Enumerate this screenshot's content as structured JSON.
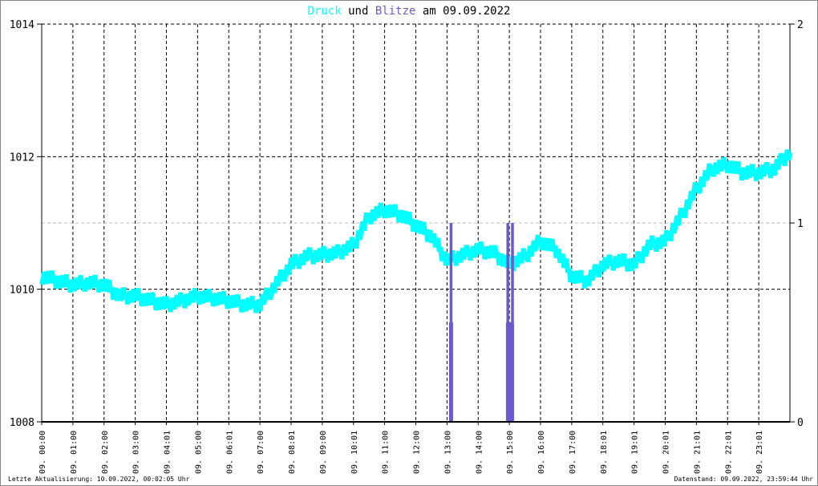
{
  "chart_data": {
    "type": "line",
    "title_parts": [
      {
        "text": "Druck",
        "color": "#00ffff"
      },
      {
        "text": " und ",
        "color": "#000000"
      },
      {
        "text": "Blitze",
        "color": "#6a5acd"
      },
      {
        "text": " am 09.09.2022",
        "color": "#000000"
      }
    ],
    "y_left": {
      "range": [
        1008,
        1014
      ],
      "ticks": [
        "1008",
        "1010",
        "1012",
        "1014"
      ]
    },
    "y_right": {
      "range": [
        0,
        2
      ],
      "ticks": [
        "0",
        "1",
        "2"
      ]
    },
    "x_ticks": [
      "09. 00:00",
      "09. 01:00",
      "09. 02:00",
      "09. 03:00",
      "09. 04:01",
      "09. 05:00",
      "09. 06:01",
      "09. 07:00",
      "09. 08:01",
      "09. 09:00",
      "09. 10:01",
      "09. 11:00",
      "09. 12:00",
      "09. 13:00",
      "09. 14:00",
      "09. 15:00",
      "09. 16:00",
      "09. 17:00",
      "09. 18:01",
      "09. 19:01",
      "09. 20:01",
      "09. 21:01",
      "09. 22:01",
      "09. 23:01"
    ],
    "grid": true,
    "series": [
      {
        "name": "Druck",
        "axis": "left",
        "color": "#00ffff",
        "x_hours": [
          0,
          0.5,
          1,
          1.5,
          2,
          2.5,
          3,
          3.5,
          4,
          4.5,
          5,
          5.5,
          6,
          6.5,
          7,
          7.5,
          8,
          8.5,
          9,
          9.5,
          10,
          10.5,
          11,
          11.5,
          12,
          12.5,
          13,
          13.5,
          14,
          14.5,
          15,
          15.5,
          16,
          16.5,
          17,
          17.5,
          18,
          18.5,
          19,
          19.5,
          20,
          20.5,
          21,
          21.5,
          22,
          22.5,
          23,
          23.5,
          24
        ],
        "values": [
          1010.2,
          1010.13,
          1010.07,
          1010.1,
          1010.07,
          1009.9,
          1009.9,
          1009.83,
          1009.77,
          1009.83,
          1009.9,
          1009.87,
          1009.83,
          1009.77,
          1009.77,
          1010.07,
          1010.37,
          1010.5,
          1010.52,
          1010.55,
          1010.67,
          1011.1,
          1011.2,
          1011.13,
          1010.97,
          1010.8,
          1010.43,
          1010.52,
          1010.6,
          1010.55,
          1010.37,
          1010.5,
          1010.73,
          1010.6,
          1010.2,
          1010.13,
          1010.37,
          1010.43,
          1010.37,
          1010.67,
          1010.73,
          1011.1,
          1011.52,
          1011.82,
          1011.88,
          1011.76,
          1011.76,
          1011.82,
          1012.07
        ]
      },
      {
        "name": "Blitze",
        "axis": "right",
        "color": "#6a5acd",
        "type": "bar",
        "bars": [
          {
            "x_hours": 13.13,
            "value": 1
          },
          {
            "x_hours": 13.13,
            "value": 0.5,
            "wide": true
          },
          {
            "x_hours": 14.95,
            "value": 1
          },
          {
            "x_hours": 15.1,
            "value": 1
          },
          {
            "x_hours": 15.02,
            "value": 0.5,
            "wide": true
          }
        ]
      }
    ]
  },
  "footer": {
    "left": "Letzte Aktualisierung: 10.09.2022, 00:02:05 Uhr",
    "right": "Datenstand: 09.09.2022, 23:59:44 Uhr"
  }
}
